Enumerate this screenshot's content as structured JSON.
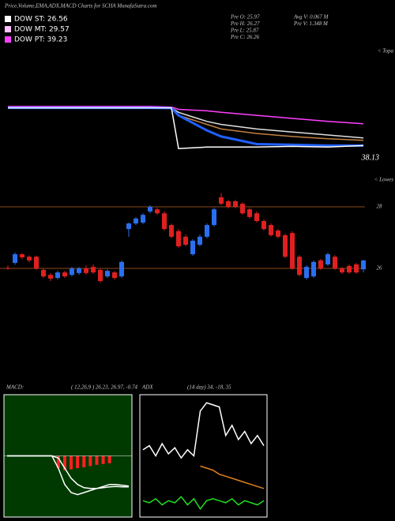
{
  "header": {
    "title": "Price,Volume,EMA,ADX,MACD Charts for SCHA MunafaSutra.com",
    "legend": [
      {
        "label": "DOW ST: 26.56",
        "color": "#ffffff"
      },
      {
        "label": "DOW MT: 29.57",
        "color": "#ffc0ff"
      },
      {
        "label": "DOW PT: 39.23",
        "color": "#ff40ff"
      }
    ],
    "stats": [
      "Pre  O: 25.97",
      "Pre  H: 26.27",
      "Pre  L: 25.87",
      "Pre  C: 26.26"
    ],
    "volume": [
      "Avg V: 0.067 M",
      "Pre  V: 1.348 M"
    ]
  },
  "chart_data": [
    {
      "type": "line",
      "corner_label": "< Topa",
      "annotation": "38.13",
      "ylim": [
        36,
        44
      ],
      "x": [
        0,
        10,
        20,
        23,
        24,
        26,
        28,
        30,
        35,
        40,
        45,
        50
      ],
      "series": [
        {
          "color": "#ff40ff",
          "values": [
            40.2,
            40.2,
            40.2,
            40.15,
            40.0,
            39.95,
            39.9,
            39.8,
            39.6,
            39.4,
            39.2,
            39.05
          ]
        },
        {
          "color": "#e0e0e0",
          "values": [
            40.1,
            40.1,
            40.1,
            40.1,
            39.8,
            39.5,
            39.2,
            39.0,
            38.7,
            38.5,
            38.3,
            38.1
          ]
        },
        {
          "color": "#c08040",
          "values": [
            40.1,
            40.1,
            40.1,
            40.1,
            39.6,
            39.3,
            39.0,
            38.7,
            38.4,
            38.2,
            38.05,
            37.95
          ]
        },
        {
          "color": "#2060ff",
          "values": [
            40.1,
            40.1,
            40.1,
            40.08,
            39.6,
            39.1,
            38.6,
            38.2,
            37.7,
            37.65,
            37.6,
            37.6
          ]
        },
        {
          "color": "#ffffff",
          "values": [
            40.1,
            40.1,
            40.1,
            40.1,
            37.4,
            37.45,
            37.5,
            37.5,
            37.5,
            37.55,
            37.5,
            37.6
          ]
        }
      ]
    },
    {
      "type": "candlestick",
      "corner_label": "< Lowes",
      "up_color": "#2a6ff0",
      "down_color": "#e02020",
      "ylim": [
        25.18,
        28.95
      ],
      "yticks": [
        26,
        28
      ],
      "open": [
        26.02,
        26.18,
        26.46,
        26.38,
        26.38,
        25.95,
        25.79,
        25.69,
        25.87,
        25.79,
        25.85,
        26.0,
        26.05,
        25.95,
        25.74,
        25.87,
        25.74,
        27.28,
        27.46,
        27.49,
        27.85,
        27.92,
        27.79,
        27.41,
        27.21,
        27.03,
        26.46,
        26.77,
        27.03,
        27.41,
        28.31,
        28.18,
        28.18,
        28.1,
        27.92,
        27.79,
        27.54,
        27.41,
        27.23,
        27.08,
        27.15,
        26.38,
        25.69,
        25.74,
        26.26,
        26.13,
        26.38,
        26.0,
        26.08,
        26.13,
        25.97
      ],
      "high": [
        26.1,
        26.52,
        26.5,
        26.42,
        26.42,
        26.0,
        25.85,
        25.92,
        25.92,
        26.05,
        26.05,
        26.1,
        26.13,
        26.0,
        25.97,
        25.92,
        26.26,
        27.49,
        27.67,
        27.79,
        28.05,
        27.97,
        27.85,
        27.46,
        27.28,
        27.1,
        26.95,
        27.1,
        27.46,
        27.97,
        28.45,
        28.23,
        28.23,
        28.15,
        27.97,
        27.85,
        27.59,
        27.46,
        27.28,
        27.13,
        27.21,
        26.43,
        26.1,
        26.26,
        26.31,
        26.51,
        26.43,
        26.05,
        26.13,
        26.18,
        26.27
      ],
      "low": [
        25.95,
        26.12,
        26.3,
        26.2,
        25.95,
        25.69,
        25.59,
        25.64,
        25.69,
        25.74,
        25.79,
        25.79,
        25.82,
        25.54,
        25.69,
        25.64,
        25.69,
        27.03,
        27.41,
        27.44,
        27.79,
        27.74,
        27.23,
        26.98,
        26.67,
        26.72,
        26.41,
        26.72,
        26.98,
        27.36,
        28.05,
        27.95,
        27.95,
        27.74,
        27.62,
        27.49,
        27.23,
        27.03,
        26.98,
        26.33,
        25.95,
        25.74,
        25.64,
        25.69,
        25.95,
        26.08,
        25.95,
        25.82,
        25.82,
        25.82,
        25.87
      ],
      "close": [
        26.0,
        26.46,
        26.36,
        26.26,
        26.0,
        25.74,
        25.67,
        25.87,
        25.74,
        26.0,
        26.0,
        25.85,
        25.87,
        25.59,
        25.92,
        25.69,
        26.21,
        27.46,
        27.62,
        27.74,
        28.0,
        27.79,
        27.28,
        27.03,
        26.72,
        26.77,
        26.9,
        27.03,
        27.41,
        27.92,
        28.1,
        28.0,
        28.0,
        27.79,
        27.67,
        27.54,
        27.28,
        27.08,
        27.03,
        26.38,
        26.0,
        25.79,
        26.05,
        26.21,
        26.0,
        26.46,
        26.0,
        25.87,
        25.87,
        25.87,
        26.26
      ]
    },
    {
      "type": "line",
      "label": "MACD:",
      "title": "( 12,26,9 ) 26.23, 26.97, -0.74",
      "background": "#013a01",
      "ylim": [
        -1.5,
        1.5
      ],
      "series": [
        {
          "type": "bar",
          "color": "#ff2020",
          "values": [
            0,
            0,
            0,
            0,
            0,
            0,
            0,
            0,
            -0.3,
            -0.35,
            -0.33,
            -0.3,
            -0.28,
            -0.25,
            -0.22,
            -0.2,
            -0.18,
            0,
            0,
            0
          ]
        },
        {
          "color": "#ffffff",
          "values": [
            0,
            0,
            0,
            0,
            0,
            0,
            0,
            0,
            -0.3,
            -0.7,
            -0.9,
            -0.95,
            -0.9,
            -0.85,
            -0.8,
            -0.75,
            -0.7,
            -0.7,
            -0.72,
            -0.74
          ]
        },
        {
          "color": "#ffffff",
          "values": [
            0,
            0,
            0,
            0,
            0,
            0,
            0,
            0,
            -0.05,
            -0.3,
            -0.55,
            -0.7,
            -0.78,
            -0.8,
            -0.8,
            -0.78,
            -0.76,
            -0.75,
            -0.76,
            -0.76
          ]
        }
      ]
    },
    {
      "type": "line",
      "label": "ADX",
      "title": "(14 day) 34, -18, 35",
      "background": "#000000",
      "ylim": [
        0,
        60
      ],
      "series": [
        {
          "color": "#ffffff",
          "values": [
            33,
            35,
            30,
            36,
            31,
            34,
            29,
            33,
            30,
            52,
            56,
            55,
            54,
            40,
            45,
            38,
            42,
            36,
            40,
            35
          ]
        },
        {
          "color": "#e08020",
          "values": [
            null,
            null,
            null,
            null,
            null,
            null,
            null,
            null,
            null,
            25,
            24,
            23,
            21,
            20,
            19,
            18,
            17,
            16,
            15,
            14
          ]
        },
        {
          "color": "#20e020",
          "values": [
            8,
            7,
            9,
            6,
            8,
            7,
            10,
            6,
            9,
            4,
            8,
            9,
            8,
            7,
            9,
            6,
            8,
            7,
            6,
            8
          ]
        }
      ]
    }
  ]
}
